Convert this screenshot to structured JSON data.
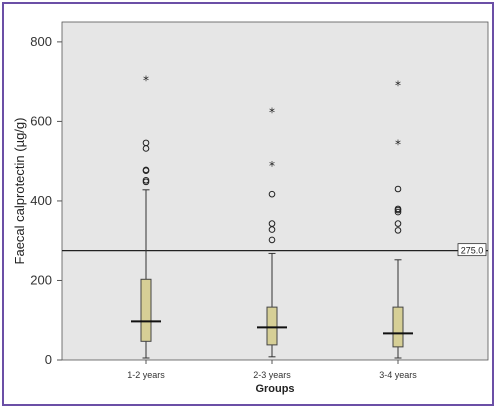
{
  "chart_data": {
    "type": "boxplot",
    "xlabel": "Groups",
    "ylabel": "Faecal calprotectin (µg/g)",
    "ylim": [
      0,
      850
    ],
    "yticks": [
      0,
      200,
      400,
      600,
      800
    ],
    "ytick_labels": [
      "0",
      "200",
      "400",
      "600",
      "800"
    ],
    "categories": [
      "1-2 years",
      "2-3 years",
      "3-4 years"
    ],
    "reference_line": {
      "value": 275,
      "label": "275.0"
    },
    "box_color": "#d6cf96",
    "plot_background": "#e6e6e6",
    "frame_color": "#6b4fa6",
    "boxes": [
      {
        "whisker_low": 5,
        "q1": 47,
        "median": 97,
        "q3": 203,
        "whisker_high": 428,
        "outliers": [
          448,
          452,
          476,
          478,
          532,
          546
        ],
        "extremes": [
          705
        ]
      },
      {
        "whisker_low": 8,
        "q1": 38,
        "median": 82,
        "q3": 133,
        "whisker_high": 268,
        "outliers": [
          302,
          328,
          343,
          417
        ],
        "extremes": [
          490,
          625
        ]
      },
      {
        "whisker_low": 5,
        "q1": 33,
        "median": 67,
        "q3": 133,
        "whisker_high": 252,
        "outliers": [
          326,
          343,
          372,
          377,
          380,
          430
        ],
        "extremes": [
          545,
          693
        ]
      }
    ]
  }
}
